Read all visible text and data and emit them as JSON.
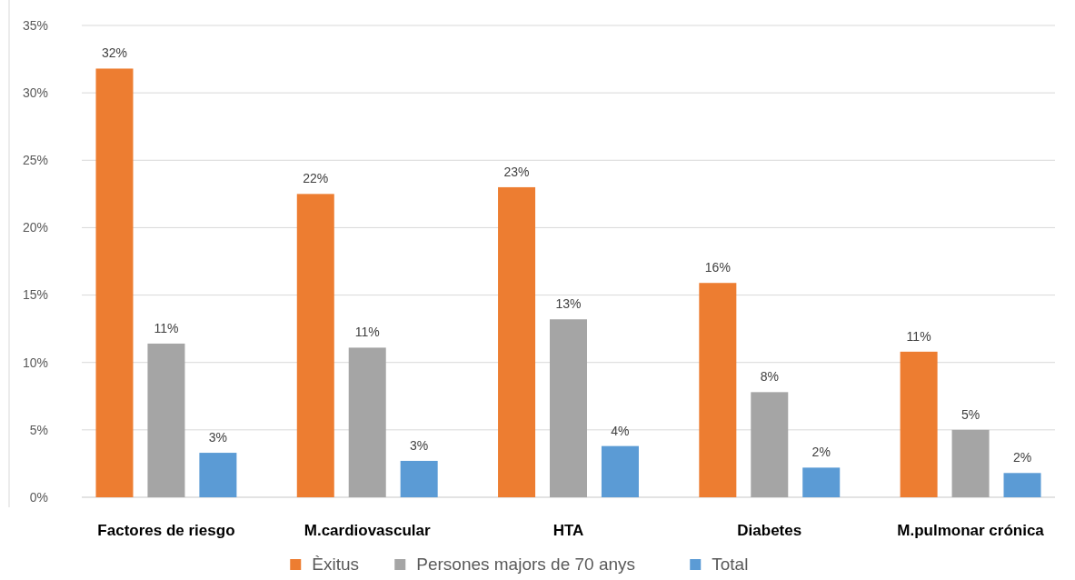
{
  "chart_data": {
    "type": "bar",
    "categories": [
      "Factores de riesgo",
      "M.cardiovascular",
      "HTA",
      "Diabetes",
      "M.pulmonar crónica"
    ],
    "series": [
      {
        "name": "Èxitus",
        "color": "#ed7d31",
        "values": [
          31.8,
          22.5,
          23.0,
          15.9,
          10.8
        ],
        "value_labels": [
          "32%",
          "22%",
          "23%",
          "16%",
          "11%"
        ]
      },
      {
        "name": "Persones majors de 70 anys",
        "color": "#a5a5a5",
        "values": [
          11.4,
          11.1,
          13.2,
          7.8,
          5.0
        ],
        "value_labels": [
          "11%",
          "11%",
          "13%",
          "8%",
          "5%"
        ]
      },
      {
        "name": "Total",
        "color": "#5b9bd5",
        "values": [
          3.3,
          2.7,
          3.8,
          2.2,
          1.8
        ],
        "value_labels": [
          "3%",
          "3%",
          "4%",
          "2%",
          "2%"
        ]
      }
    ],
    "ylim": [
      0,
      35
    ],
    "yticks": [
      {
        "value": 0,
        "label": "0%"
      },
      {
        "value": 5,
        "label": "5%"
      },
      {
        "value": 10,
        "label": "10%"
      },
      {
        "value": 15,
        "label": "15%"
      },
      {
        "value": 20,
        "label": "20%"
      },
      {
        "value": 25,
        "label": "25%"
      },
      {
        "value": 30,
        "label": "30%"
      },
      {
        "value": 35,
        "label": "35%"
      }
    ],
    "grid": "y",
    "legend": "bottom"
  }
}
